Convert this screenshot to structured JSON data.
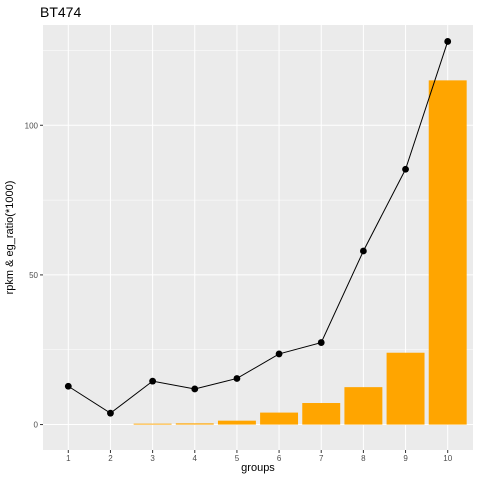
{
  "chart_data": {
    "type": "bar",
    "title": "BT474",
    "xlabel": "groups",
    "ylabel": "rpkm & eg_ratio(*1000)",
    "categories": [
      "1",
      "2",
      "3",
      "4",
      "5",
      "6",
      "7",
      "8",
      "9",
      "10"
    ],
    "ylim": [
      -8.5,
      133.5
    ],
    "yticks": [
      0,
      50,
      100
    ],
    "grid": true,
    "legend": "none",
    "series": [
      {
        "type": "bar",
        "values": [
          0.0,
          0.0,
          0.3,
          0.4,
          1.3,
          4.0,
          7.2,
          12.5,
          24.0,
          115.0
        ],
        "color": "#FFA500"
      },
      {
        "type": "line",
        "values": [
          12.8,
          3.8,
          14.5,
          11.9,
          15.4,
          23.6,
          27.4,
          58.0,
          85.3,
          128.0
        ],
        "color": "#000000"
      }
    ]
  }
}
